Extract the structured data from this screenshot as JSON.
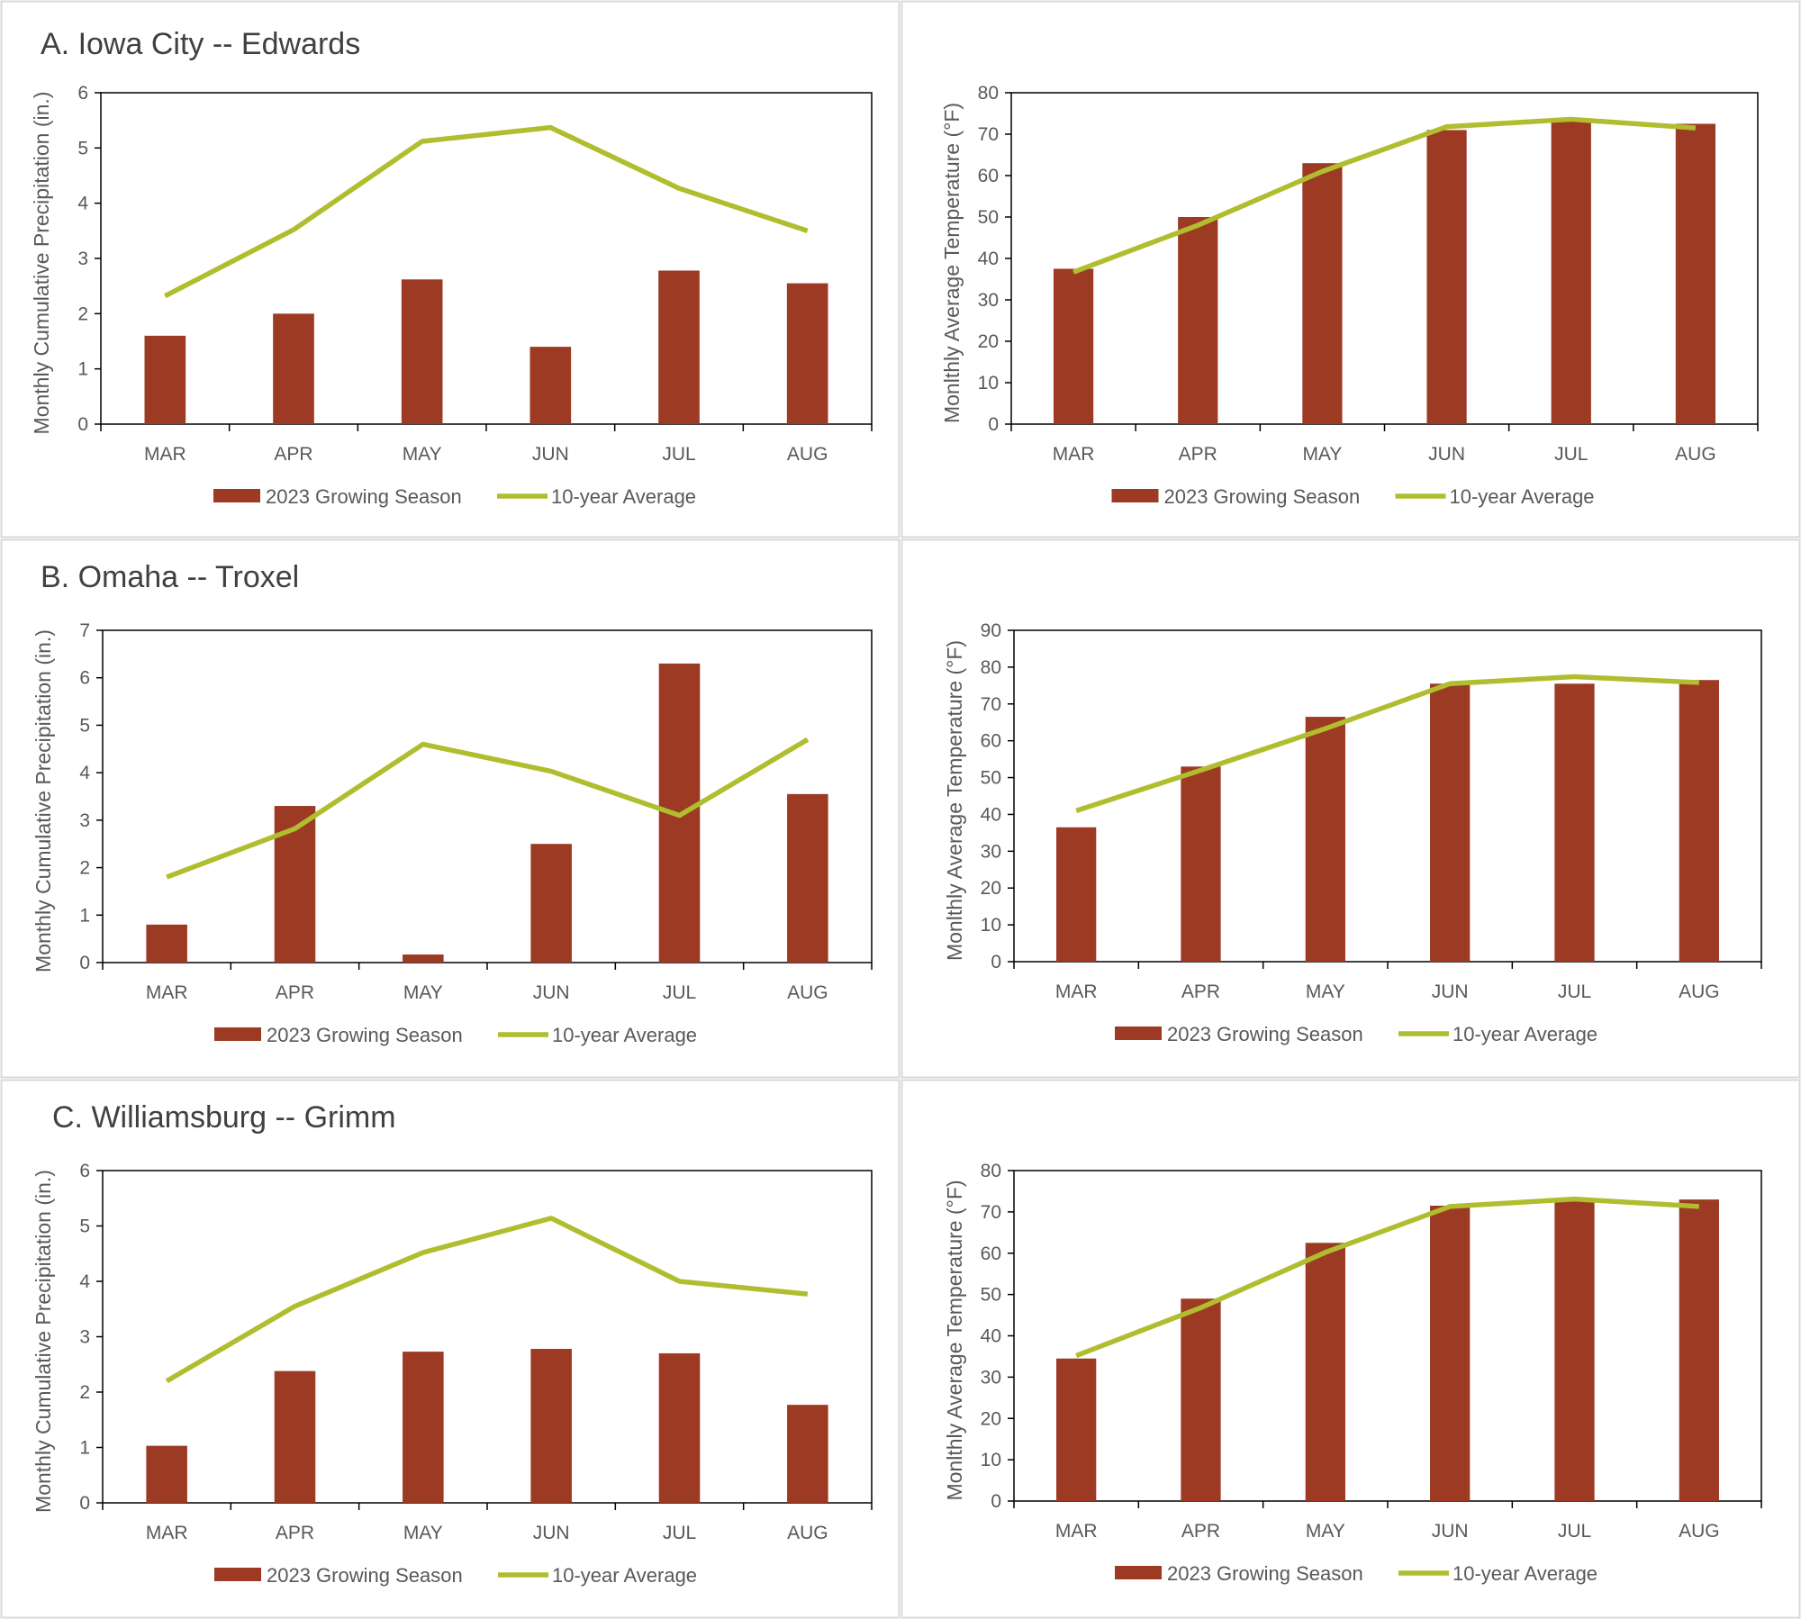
{
  "colors": {
    "bar": "#9C3A24",
    "line": "#B0BD2E",
    "axis": "#000000",
    "panel_border": "#D9D9D9",
    "text": "#595959",
    "title": "#404040"
  },
  "legend": {
    "bar_label": "2023 Growing Season",
    "line_label": "10-year Average",
    "placement": "bottom"
  },
  "chart_data": [
    {
      "type": "bar",
      "title": "A. Iowa City -- Edwards",
      "xlabel": "",
      "ylabel": "Monthly Cumulative Precipitation (in.)",
      "categories": [
        "MAR",
        "APR",
        "MAY",
        "JUN",
        "JUL",
        "AUG"
      ],
      "ylim": [
        0,
        6
      ],
      "yticks": [
        0,
        1,
        2,
        3,
        4,
        5,
        6
      ],
      "series": [
        {
          "name": "2023 Growing Season",
          "type": "bar",
          "values": [
            1.6,
            2.0,
            2.62,
            1.4,
            2.78,
            2.55
          ]
        },
        {
          "name": "10-year Average",
          "type": "line",
          "values": [
            2.32,
            3.52,
            5.12,
            5.37,
            4.27,
            3.5
          ]
        }
      ],
      "grid": false,
      "legend": "bottom"
    },
    {
      "type": "bar",
      "title": "",
      "xlabel": "",
      "ylabel": "Monlthly Average Temperature (°F)",
      "categories": [
        "MAR",
        "APR",
        "MAY",
        "JUN",
        "JUL",
        "AUG"
      ],
      "ylim": [
        0,
        80
      ],
      "yticks": [
        0,
        10,
        20,
        30,
        40,
        50,
        60,
        70,
        80
      ],
      "series": [
        {
          "name": "2023 Growing Season",
          "type": "bar",
          "values": [
            37.5,
            50,
            63,
            71,
            73.5,
            72.5
          ]
        },
        {
          "name": "10-year Average",
          "type": "line",
          "values": [
            36.7,
            48,
            61,
            71.8,
            73.6,
            71.5
          ]
        }
      ],
      "grid": false,
      "legend": "bottom"
    },
    {
      "type": "bar",
      "title": "B. Omaha -- Troxel",
      "xlabel": "",
      "ylabel": "Monthly Cumulative Precipitation (in.)",
      "categories": [
        "MAR",
        "APR",
        "MAY",
        "JUN",
        "JUL",
        "AUG"
      ],
      "ylim": [
        0,
        7
      ],
      "yticks": [
        0,
        1,
        2,
        3,
        4,
        5,
        6,
        7
      ],
      "series": [
        {
          "name": "2023 Growing Season",
          "type": "bar",
          "values": [
            0.8,
            3.3,
            0.17,
            2.5,
            6.3,
            3.55
          ]
        },
        {
          "name": "10-year Average",
          "type": "line",
          "values": [
            1.8,
            2.82,
            4.6,
            4.03,
            3.1,
            4.7
          ]
        }
      ],
      "grid": false,
      "legend": "bottom"
    },
    {
      "type": "bar",
      "title": "",
      "xlabel": "",
      "ylabel": "Monlthly Average Temperature (°F)",
      "categories": [
        "MAR",
        "APR",
        "MAY",
        "JUN",
        "JUL",
        "AUG"
      ],
      "ylim": [
        0,
        90
      ],
      "yticks": [
        0,
        10,
        20,
        30,
        40,
        50,
        60,
        70,
        80,
        90
      ],
      "series": [
        {
          "name": "2023 Growing Season",
          "type": "bar",
          "values": [
            36.5,
            53,
            66.5,
            75.5,
            75.5,
            76.5
          ]
        },
        {
          "name": "10-year Average",
          "type": "line",
          "values": [
            41,
            52,
            63.3,
            75.5,
            77.4,
            75.8
          ]
        }
      ],
      "grid": false,
      "legend": "bottom"
    },
    {
      "type": "bar",
      "title": "C. Williamsburg -- Grimm",
      "xlabel": "",
      "ylabel": "Monthly Cumulative Precipitation (in.)",
      "categories": [
        "MAR",
        "APR",
        "MAY",
        "JUN",
        "JUL",
        "AUG"
      ],
      "ylim": [
        0,
        6
      ],
      "yticks": [
        0,
        1,
        2,
        3,
        4,
        5,
        6
      ],
      "series": [
        {
          "name": "2023 Growing Season",
          "type": "bar",
          "values": [
            1.03,
            2.38,
            2.73,
            2.78,
            2.7,
            1.77
          ]
        },
        {
          "name": "10-year Average",
          "type": "line",
          "values": [
            2.2,
            3.55,
            4.52,
            5.14,
            4.0,
            3.77
          ]
        }
      ],
      "grid": false,
      "legend": "bottom"
    },
    {
      "type": "bar",
      "title": "",
      "xlabel": "",
      "ylabel": "Monlthly Average Temperature (°F)",
      "categories": [
        "MAR",
        "APR",
        "MAY",
        "JUN",
        "JUL",
        "AUG"
      ],
      "ylim": [
        0,
        80
      ],
      "yticks": [
        0,
        10,
        20,
        30,
        40,
        50,
        60,
        70,
        80
      ],
      "series": [
        {
          "name": "2023 Growing Season",
          "type": "bar",
          "values": [
            34.5,
            49,
            62.5,
            71.5,
            73,
            73
          ]
        },
        {
          "name": "10-year Average",
          "type": "line",
          "values": [
            35.2,
            46.8,
            60.2,
            71.3,
            73.1,
            71.3
          ]
        }
      ],
      "grid": false,
      "legend": "bottom"
    }
  ]
}
